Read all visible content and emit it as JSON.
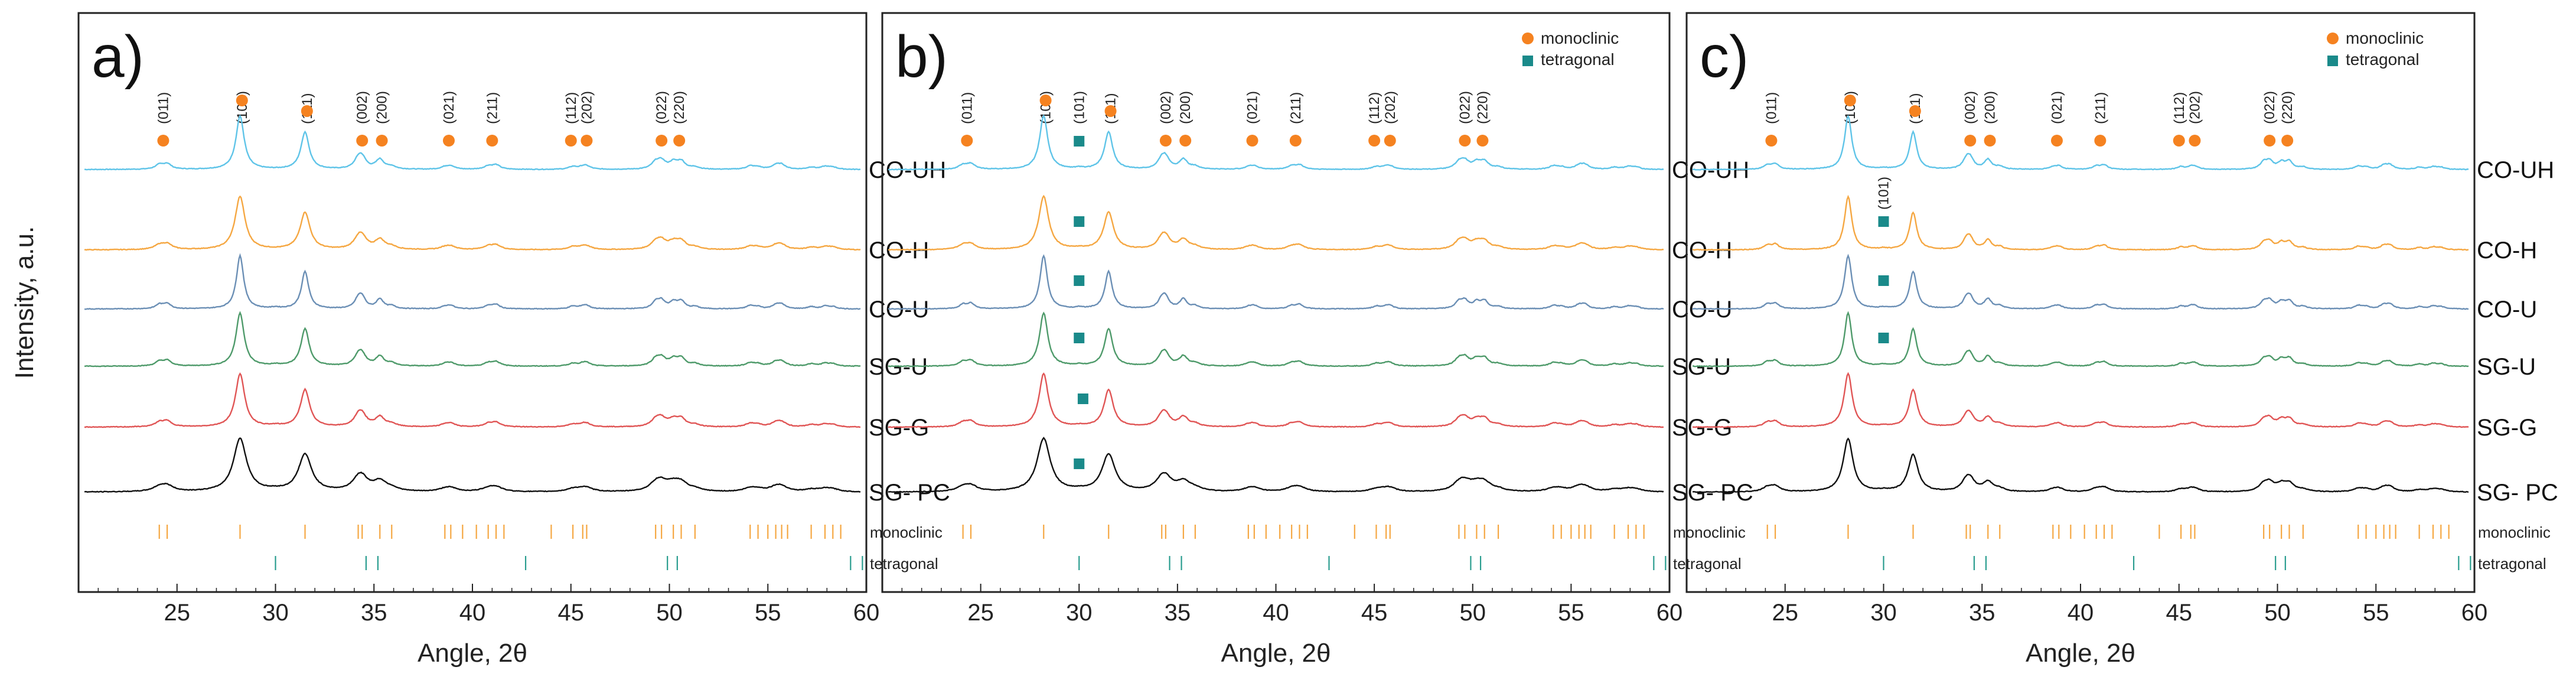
{
  "chart_data": [
    {
      "panel": "a)",
      "type": "line",
      "xlabel": "Angle, 2θ",
      "ylabel": "Intensity, a.u.",
      "xlim": [
        20,
        60
      ],
      "xticks": [
        25,
        30,
        35,
        40,
        45,
        50,
        55,
        60
      ],
      "legend": [],
      "samples": [
        "CO-UH",
        "CO-H",
        "CO-U",
        "SG-U",
        "SG-G",
        "SG- PC"
      ],
      "sample_colors": [
        "#5fc4e8",
        "#f5a742",
        "#6b8fb5",
        "#4e9a6a",
        "#e05555",
        "#111111"
      ],
      "peak_widths": [
        0.25,
        0.3,
        0.22,
        0.25,
        0.28,
        0.4
      ],
      "peaks": [
        {
          "label": "(011)",
          "x": 24.3,
          "phase": "monoclinic"
        },
        {
          "label": "(100)",
          "x": 28.3,
          "phase": "monoclinic"
        },
        {
          "label": "(111)",
          "x": 31.6,
          "phase": "monoclinic"
        },
        {
          "label": "(002)",
          "x": 34.4,
          "phase": "monoclinic"
        },
        {
          "label": "(200)",
          "x": 35.4,
          "phase": "monoclinic"
        },
        {
          "label": "(021)",
          "x": 38.8,
          "phase": "monoclinic"
        },
        {
          "label": "(211)",
          "x": 41.0,
          "phase": "monoclinic"
        },
        {
          "label": "(112)",
          "x": 45.0,
          "phase": "monoclinic"
        },
        {
          "label": "(202)",
          "x": 45.8,
          "phase": "monoclinic"
        },
        {
          "label": "(022)",
          "x": 49.6,
          "phase": "monoclinic"
        },
        {
          "label": "(220)",
          "x": 50.5,
          "phase": "monoclinic"
        }
      ],
      "tetragonal_markers": []
    },
    {
      "panel": "b)",
      "type": "line",
      "xlabel": "Angle, 2θ",
      "ylabel": "",
      "xlim": [
        20,
        60
      ],
      "xticks": [
        25,
        30,
        35,
        40,
        45,
        50,
        55,
        60
      ],
      "legend": [
        "monoclinic",
        "tetragonal"
      ],
      "samples": [
        "CO-UH",
        "CO-H",
        "CO-U",
        "SG-U",
        "SG-G",
        "SG- PC"
      ],
      "sample_colors": [
        "#5fc4e8",
        "#f5a742",
        "#6b8fb5",
        "#4e9a6a",
        "#e05555",
        "#111111"
      ],
      "peak_widths": [
        0.25,
        0.3,
        0.22,
        0.25,
        0.28,
        0.4
      ],
      "peaks": [
        {
          "label": "(011)",
          "x": 24.3,
          "phase": "monoclinic"
        },
        {
          "label": "(100)",
          "x": 28.3,
          "phase": "monoclinic"
        },
        {
          "label": "(101)",
          "x": 30.0,
          "phase": "tetragonal"
        },
        {
          "label": "(111)",
          "x": 31.6,
          "phase": "monoclinic"
        },
        {
          "label": "(002)",
          "x": 34.4,
          "phase": "monoclinic"
        },
        {
          "label": "(200)",
          "x": 35.4,
          "phase": "monoclinic"
        },
        {
          "label": "(021)",
          "x": 38.8,
          "phase": "monoclinic"
        },
        {
          "label": "(211)",
          "x": 41.0,
          "phase": "monoclinic"
        },
        {
          "label": "(112)",
          "x": 45.0,
          "phase": "monoclinic"
        },
        {
          "label": "(202)",
          "x": 45.8,
          "phase": "monoclinic"
        },
        {
          "label": "(022)",
          "x": 49.6,
          "phase": "monoclinic"
        },
        {
          "label": "(220)",
          "x": 50.5,
          "phase": "monoclinic"
        }
      ],
      "tetragonal_markers": [
        {
          "sample": "CO-UH",
          "x": 30.0
        },
        {
          "sample": "CO-H",
          "x": 30.0
        },
        {
          "sample": "CO-U",
          "x": 30.0
        },
        {
          "sample": "SG-U",
          "x": 30.0
        },
        {
          "sample": "SG-G",
          "x": 30.2
        },
        {
          "sample": "SG- PC",
          "x": 30.0
        }
      ]
    },
    {
      "panel": "c)",
      "type": "line",
      "xlabel": "Angle, 2θ",
      "ylabel": "",
      "xlim": [
        20,
        60
      ],
      "xticks": [
        25,
        30,
        35,
        40,
        45,
        50,
        55,
        60
      ],
      "legend": [
        "monoclinic",
        "tetragonal"
      ],
      "samples": [
        "CO-UH",
        "CO-H",
        "CO-U",
        "SG-U",
        "SG-G",
        "SG- PC"
      ],
      "sample_colors": [
        "#5fc4e8",
        "#f5a742",
        "#6b8fb5",
        "#4e9a6a",
        "#e05555",
        "#111111"
      ],
      "peak_widths": [
        0.22,
        0.22,
        0.22,
        0.22,
        0.25,
        0.3
      ],
      "peaks": [
        {
          "label": "(011)",
          "x": 24.3,
          "phase": "monoclinic"
        },
        {
          "label": "(100)",
          "x": 28.3,
          "phase": "monoclinic"
        },
        {
          "label": "(111)",
          "x": 31.6,
          "phase": "monoclinic"
        },
        {
          "label": "(002)",
          "x": 34.4,
          "phase": "monoclinic"
        },
        {
          "label": "(200)",
          "x": 35.4,
          "phase": "monoclinic"
        },
        {
          "label": "(021)",
          "x": 38.8,
          "phase": "monoclinic"
        },
        {
          "label": "(211)",
          "x": 41.0,
          "phase": "monoclinic"
        },
        {
          "label": "(112)",
          "x": 45.0,
          "phase": "monoclinic"
        },
        {
          "label": "(202)",
          "x": 45.8,
          "phase": "monoclinic"
        },
        {
          "label": "(022)",
          "x": 49.6,
          "phase": "monoclinic"
        },
        {
          "label": "(220)",
          "x": 50.5,
          "phase": "monoclinic"
        }
      ],
      "tetragonal_markers": [
        {
          "sample": "CO-H",
          "x": 30.0,
          "label": "(101)"
        },
        {
          "sample": "CO-U",
          "x": 30.0
        },
        {
          "sample": "SG-U",
          "x": 30.0
        }
      ]
    }
  ],
  "reference_patterns": {
    "monoclinic": {
      "label": "monoclinic",
      "positions": [
        24.1,
        24.5,
        28.2,
        31.5,
        34.2,
        34.4,
        35.3,
        35.9,
        38.6,
        38.9,
        39.5,
        40.2,
        40.8,
        41.2,
        41.6,
        44.0,
        45.1,
        45.6,
        45.8,
        49.3,
        49.6,
        50.2,
        50.6,
        51.3,
        54.1,
        54.5,
        55.0,
        55.4,
        55.7,
        56.0,
        57.2,
        57.9,
        58.3,
        58.7
      ],
      "color": "#f5a742"
    },
    "tetragonal": {
      "label": "tetragonal",
      "positions": [
        30.0,
        34.6,
        35.2,
        42.7,
        49.9,
        50.4,
        59.2,
        59.8
      ],
      "color": "#2a9d8f"
    }
  },
  "series_style": {
    "monoclinic_marker_color": "#f58220",
    "tetragonal_marker_color": "#1a8a8a"
  }
}
